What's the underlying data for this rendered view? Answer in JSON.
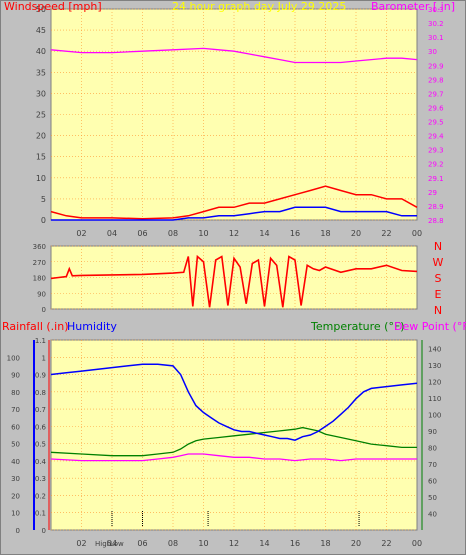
{
  "colors": {
    "background": "#c0c0c0",
    "plot_bg": "#ffffb0",
    "grid": "#ff9933",
    "wind_axis": "#ff0000",
    "baro": "#ff00ff",
    "rain": "#ff0000",
    "humidity": "#0000ff",
    "temperature": "#008000",
    "dewpoint": "#ff00ff",
    "tick": "#404040",
    "title": "#ffff00"
  },
  "top_panel": {
    "title": "24 hour graph day   July 29 2025",
    "left_label": "Windspeed [mph]",
    "right_label": "Barometer [.in]"
  },
  "mid_panel": {
    "compass": [
      "N",
      "W",
      "S",
      "E",
      "N"
    ]
  },
  "bottom_panel": {
    "label_rain": "Rainfall (.in)",
    "label_humidity": "Humidity",
    "label_temp": "Temperature (°F)",
    "label_dew": "Dew Point (°F)",
    "marker_high": "High",
    "marker_low": "Low"
  },
  "chart_data": [
    {
      "type": "line",
      "title": "24 hour graph day   July 29 2025",
      "xlabel": "",
      "x_ticks": [
        "02",
        "04",
        "06",
        "08",
        "10",
        "12",
        "14",
        "16",
        "18",
        "20",
        "22",
        "00"
      ],
      "ylabel": "Windspeed [mph]",
      "ylim": [
        0,
        50
      ],
      "y_ticks": [
        0,
        5,
        10,
        15,
        20,
        25,
        30,
        35,
        40,
        45,
        50
      ],
      "y2label": "Barometer [.in]",
      "y2lim": [
        28.8,
        30.3
      ],
      "y2_ticks": [
        "28.8",
        "28.9",
        "29",
        "29.1",
        "29.2",
        "29.3",
        "29.4",
        "29.5",
        "29.6",
        "29.7",
        "29.8",
        "29.9",
        "30",
        "30.1",
        "30.2",
        "30.3"
      ],
      "series": [
        {
          "name": "Barometer",
          "axis": "right",
          "x": [
            0,
            2,
            4,
            6,
            8,
            10,
            11,
            12,
            13,
            14,
            15,
            16,
            17,
            18,
            19,
            20,
            21,
            22,
            23,
            24
          ],
          "y": [
            30.01,
            29.99,
            29.99,
            30.0,
            30.01,
            30.02,
            30.01,
            30.0,
            29.98,
            29.96,
            29.94,
            29.92,
            29.92,
            29.92,
            29.92,
            29.93,
            29.94,
            29.95,
            29.95,
            29.94
          ]
        },
        {
          "name": "Wind gust",
          "axis": "left",
          "x": [
            0,
            1,
            2,
            4,
            6,
            8,
            9,
            10,
            11,
            12,
            13,
            14,
            15,
            16,
            17,
            18,
            19,
            20,
            21,
            22,
            23,
            24
          ],
          "y": [
            2,
            1,
            0.5,
            0.5,
            0.3,
            0.5,
            1,
            2,
            3,
            3,
            4,
            4,
            5,
            6,
            7,
            8,
            7,
            6,
            6,
            5,
            5,
            3
          ]
        },
        {
          "name": "Wind speed",
          "axis": "left",
          "x": [
            0,
            2,
            4,
            6,
            8,
            9,
            10,
            11,
            12,
            13,
            14,
            15,
            16,
            17,
            18,
            19,
            20,
            21,
            22,
            23,
            24
          ],
          "y": [
            0,
            0,
            0,
            0,
            0,
            0.5,
            0.5,
            1,
            1,
            1.5,
            2,
            2,
            3,
            3,
            3,
            2,
            2,
            2,
            2,
            1,
            1
          ]
        }
      ]
    },
    {
      "type": "line",
      "y_ticks": [
        0,
        90,
        180,
        270,
        360
      ],
      "ylim": [
        0,
        360
      ],
      "x_ticks": [
        "02",
        "04",
        "06",
        "08",
        "10",
        "12",
        "14",
        "16",
        "18",
        "20",
        "22",
        "00"
      ],
      "series": [
        {
          "name": "Wind direction",
          "x": [
            0,
            0.5,
            1.0,
            1.2,
            1.4,
            2,
            4,
            6,
            8,
            8.7,
            9,
            9.3,
            9.6,
            10,
            10.4,
            10.8,
            11.2,
            11.6,
            12,
            12.4,
            12.8,
            13.2,
            13.6,
            14,
            14.4,
            14.8,
            15.2,
            15.6,
            16,
            16.4,
            16.8,
            17.2,
            17.6,
            18,
            19,
            20,
            21,
            22,
            23,
            24
          ],
          "y": [
            175,
            180,
            185,
            230,
            190,
            192,
            195,
            198,
            205,
            210,
            300,
            15,
            300,
            270,
            10,
            280,
            300,
            20,
            290,
            240,
            30,
            260,
            280,
            15,
            290,
            250,
            10,
            300,
            280,
            20,
            250,
            230,
            220,
            240,
            210,
            230,
            230,
            250,
            220,
            215
          ]
        }
      ]
    },
    {
      "type": "line",
      "x_ticks": [
        "02",
        "04",
        "06",
        "08",
        "10",
        "12",
        "14",
        "16",
        "18",
        "20",
        "22",
        "00"
      ],
      "ylabel": "Rainfall (.in)",
      "ylim": [
        0,
        1.1
      ],
      "y_ticks": [
        "0",
        "0.1",
        "0.2",
        "0.3",
        "0.4",
        "0.5",
        "0.6",
        "0.7",
        "0.8",
        "0.9",
        "1",
        "1.1"
      ],
      "y_hum_ticks": [
        0,
        10,
        20,
        30,
        40,
        50,
        60,
        70,
        80,
        90,
        100
      ],
      "y2label": "Temperature (°F)",
      "y2lim": [
        30,
        145
      ],
      "y2_ticks": [
        40,
        50,
        60,
        70,
        80,
        90,
        100,
        110,
        120,
        130,
        140
      ],
      "series": [
        {
          "name": "Humidity",
          "axis": "humidity",
          "x": [
            0,
            1,
            2,
            3,
            4,
            5,
            6,
            7,
            8,
            8.5,
            9,
            9.5,
            10,
            10.5,
            11,
            11.5,
            12,
            12.5,
            13,
            13.5,
            14,
            14.5,
            15,
            15.5,
            16,
            16.5,
            17,
            17.5,
            18,
            18.5,
            19,
            19.5,
            20,
            20.5,
            21,
            22,
            23,
            24
          ],
          "y": [
            90,
            91,
            92,
            93,
            94,
            95,
            96,
            96,
            95,
            90,
            80,
            72,
            68,
            65,
            62,
            60,
            58,
            57,
            57,
            56,
            55,
            54,
            53,
            53,
            52,
            54,
            55,
            57,
            60,
            63,
            67,
            71,
            76,
            80,
            82,
            83,
            84,
            85
          ]
        },
        {
          "name": "Temperature",
          "axis": "temp",
          "x": [
            0,
            2,
            4,
            6,
            7,
            8,
            8.5,
            9,
            9.5,
            10,
            11,
            12,
            13,
            14,
            15,
            16,
            16.5,
            17,
            17.5,
            18,
            19,
            20,
            21,
            22,
            23,
            24
          ],
          "y": [
            77,
            76,
            75,
            75,
            76,
            77,
            79,
            82,
            84,
            85,
            86,
            87,
            88,
            89,
            90,
            91,
            92,
            91,
            90,
            88,
            86,
            84,
            82,
            81,
            80,
            80
          ]
        },
        {
          "name": "Dew Point",
          "axis": "temp",
          "x": [
            0,
            2,
            4,
            6,
            7,
            8,
            8.5,
            9,
            10,
            11,
            12,
            13,
            14,
            15,
            16,
            17,
            18,
            19,
            20,
            21,
            22,
            23,
            24
          ],
          "y": [
            73,
            72,
            72,
            72,
            73,
            74,
            75,
            76,
            76,
            75,
            74,
            74,
            73,
            73,
            72,
            73,
            73,
            72,
            73,
            73,
            73,
            73,
            73
          ]
        }
      ]
    }
  ]
}
